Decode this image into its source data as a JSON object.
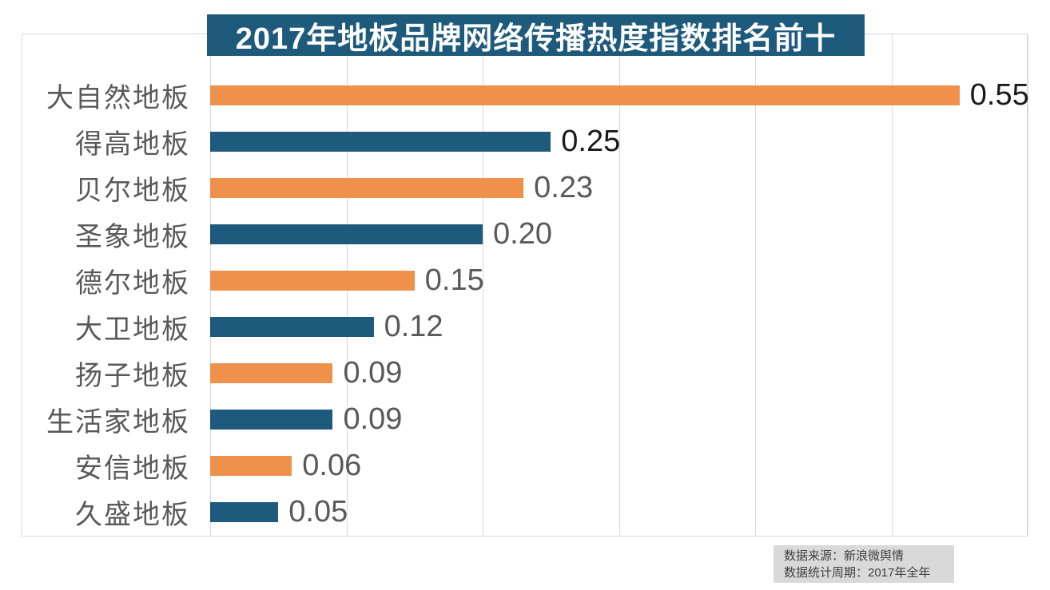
{
  "title": {
    "text": "2017年地板品牌网络传播热度指数排名前十",
    "bg_color": "#1e5a7c",
    "text_color": "#ffffff"
  },
  "source_note": {
    "line1": "数据来源：新浪微舆情",
    "line2": "数据统计周期：2017年全年",
    "bg_color": "#d9d9d9",
    "text_color": "#404040"
  },
  "chart_data": {
    "type": "bar",
    "orientation": "horizontal",
    "title": "2017年地板品牌网络传播热度指数排名前十",
    "categories": [
      "大自然地板",
      "得高地板",
      "贝尔地板",
      "圣象地板",
      "德尔地板",
      "大卫地板",
      "扬子地板",
      "生活家地板",
      "安信地板",
      "久盛地板"
    ],
    "values": [
      0.55,
      0.25,
      0.23,
      0.2,
      0.15,
      0.12,
      0.09,
      0.09,
      0.06,
      0.05
    ],
    "value_labels": [
      "0.55",
      "0.25",
      "0.23",
      "0.20",
      "0.15",
      "0.12",
      "0.09",
      "0.09",
      "0.06",
      "0.05"
    ],
    "bar_colors": [
      "#f0914b",
      "#1e5a7c",
      "#f0914b",
      "#1e5a7c",
      "#f0914b",
      "#1e5a7c",
      "#f0914b",
      "#1e5a7c",
      "#f0914b",
      "#1e5a7c"
    ],
    "value_label_colors": [
      "#1a1a1a",
      "#1a1a1a",
      "#595959",
      "#595959",
      "#595959",
      "#595959",
      "#595959",
      "#595959",
      "#595959",
      "#595959"
    ],
    "category_label_color": "#595959",
    "xlabel": "",
    "ylabel": "",
    "xlim": [
      0,
      0.6
    ],
    "grid_ticks": [
      0,
      0.1,
      0.2,
      0.3,
      0.4,
      0.5,
      0.6
    ],
    "grid": true,
    "axis_tick_labels_visible": false,
    "grid_color": "#d9d9d9",
    "legend_position": "none"
  }
}
